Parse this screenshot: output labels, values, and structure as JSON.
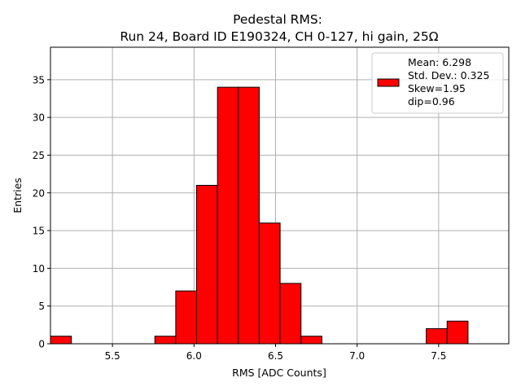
{
  "chart_data": {
    "type": "bar",
    "title_lines": [
      "Pedestal RMS:",
      "Run 24, Board ID E190324, CH 0-127, hi gain, 25Ω"
    ],
    "xlabel": "RMS [ADC Counts]",
    "ylabel": "Entries",
    "xlim": [
      5.12,
      7.93
    ],
    "ylim": [
      0,
      39.3
    ],
    "xticks": [
      5.5,
      6.0,
      6.5,
      7.0,
      7.5
    ],
    "yticks": [
      0,
      5,
      10,
      15,
      20,
      25,
      30,
      35
    ],
    "grid": true,
    "bin_edges": [
      5.12,
      5.248,
      5.376,
      5.504,
      5.632,
      5.76,
      5.888,
      6.016,
      6.144,
      6.272,
      6.4,
      6.528,
      6.656,
      6.784,
      6.912,
      7.04,
      7.168,
      7.296,
      7.424,
      7.552,
      7.68
    ],
    "values": [
      1,
      0,
      0,
      0,
      0,
      1,
      7,
      21,
      34,
      34,
      16,
      8,
      1,
      0,
      0,
      0,
      0,
      0,
      2,
      3
    ],
    "bar_color": "#ff0000",
    "edge_color": "#000000",
    "legend": {
      "placement": "top-right",
      "lines": [
        "Mean: 6.298",
        "Std. Dev.: 0.325",
        "Skew=1.95",
        "dip=0.96"
      ]
    }
  }
}
